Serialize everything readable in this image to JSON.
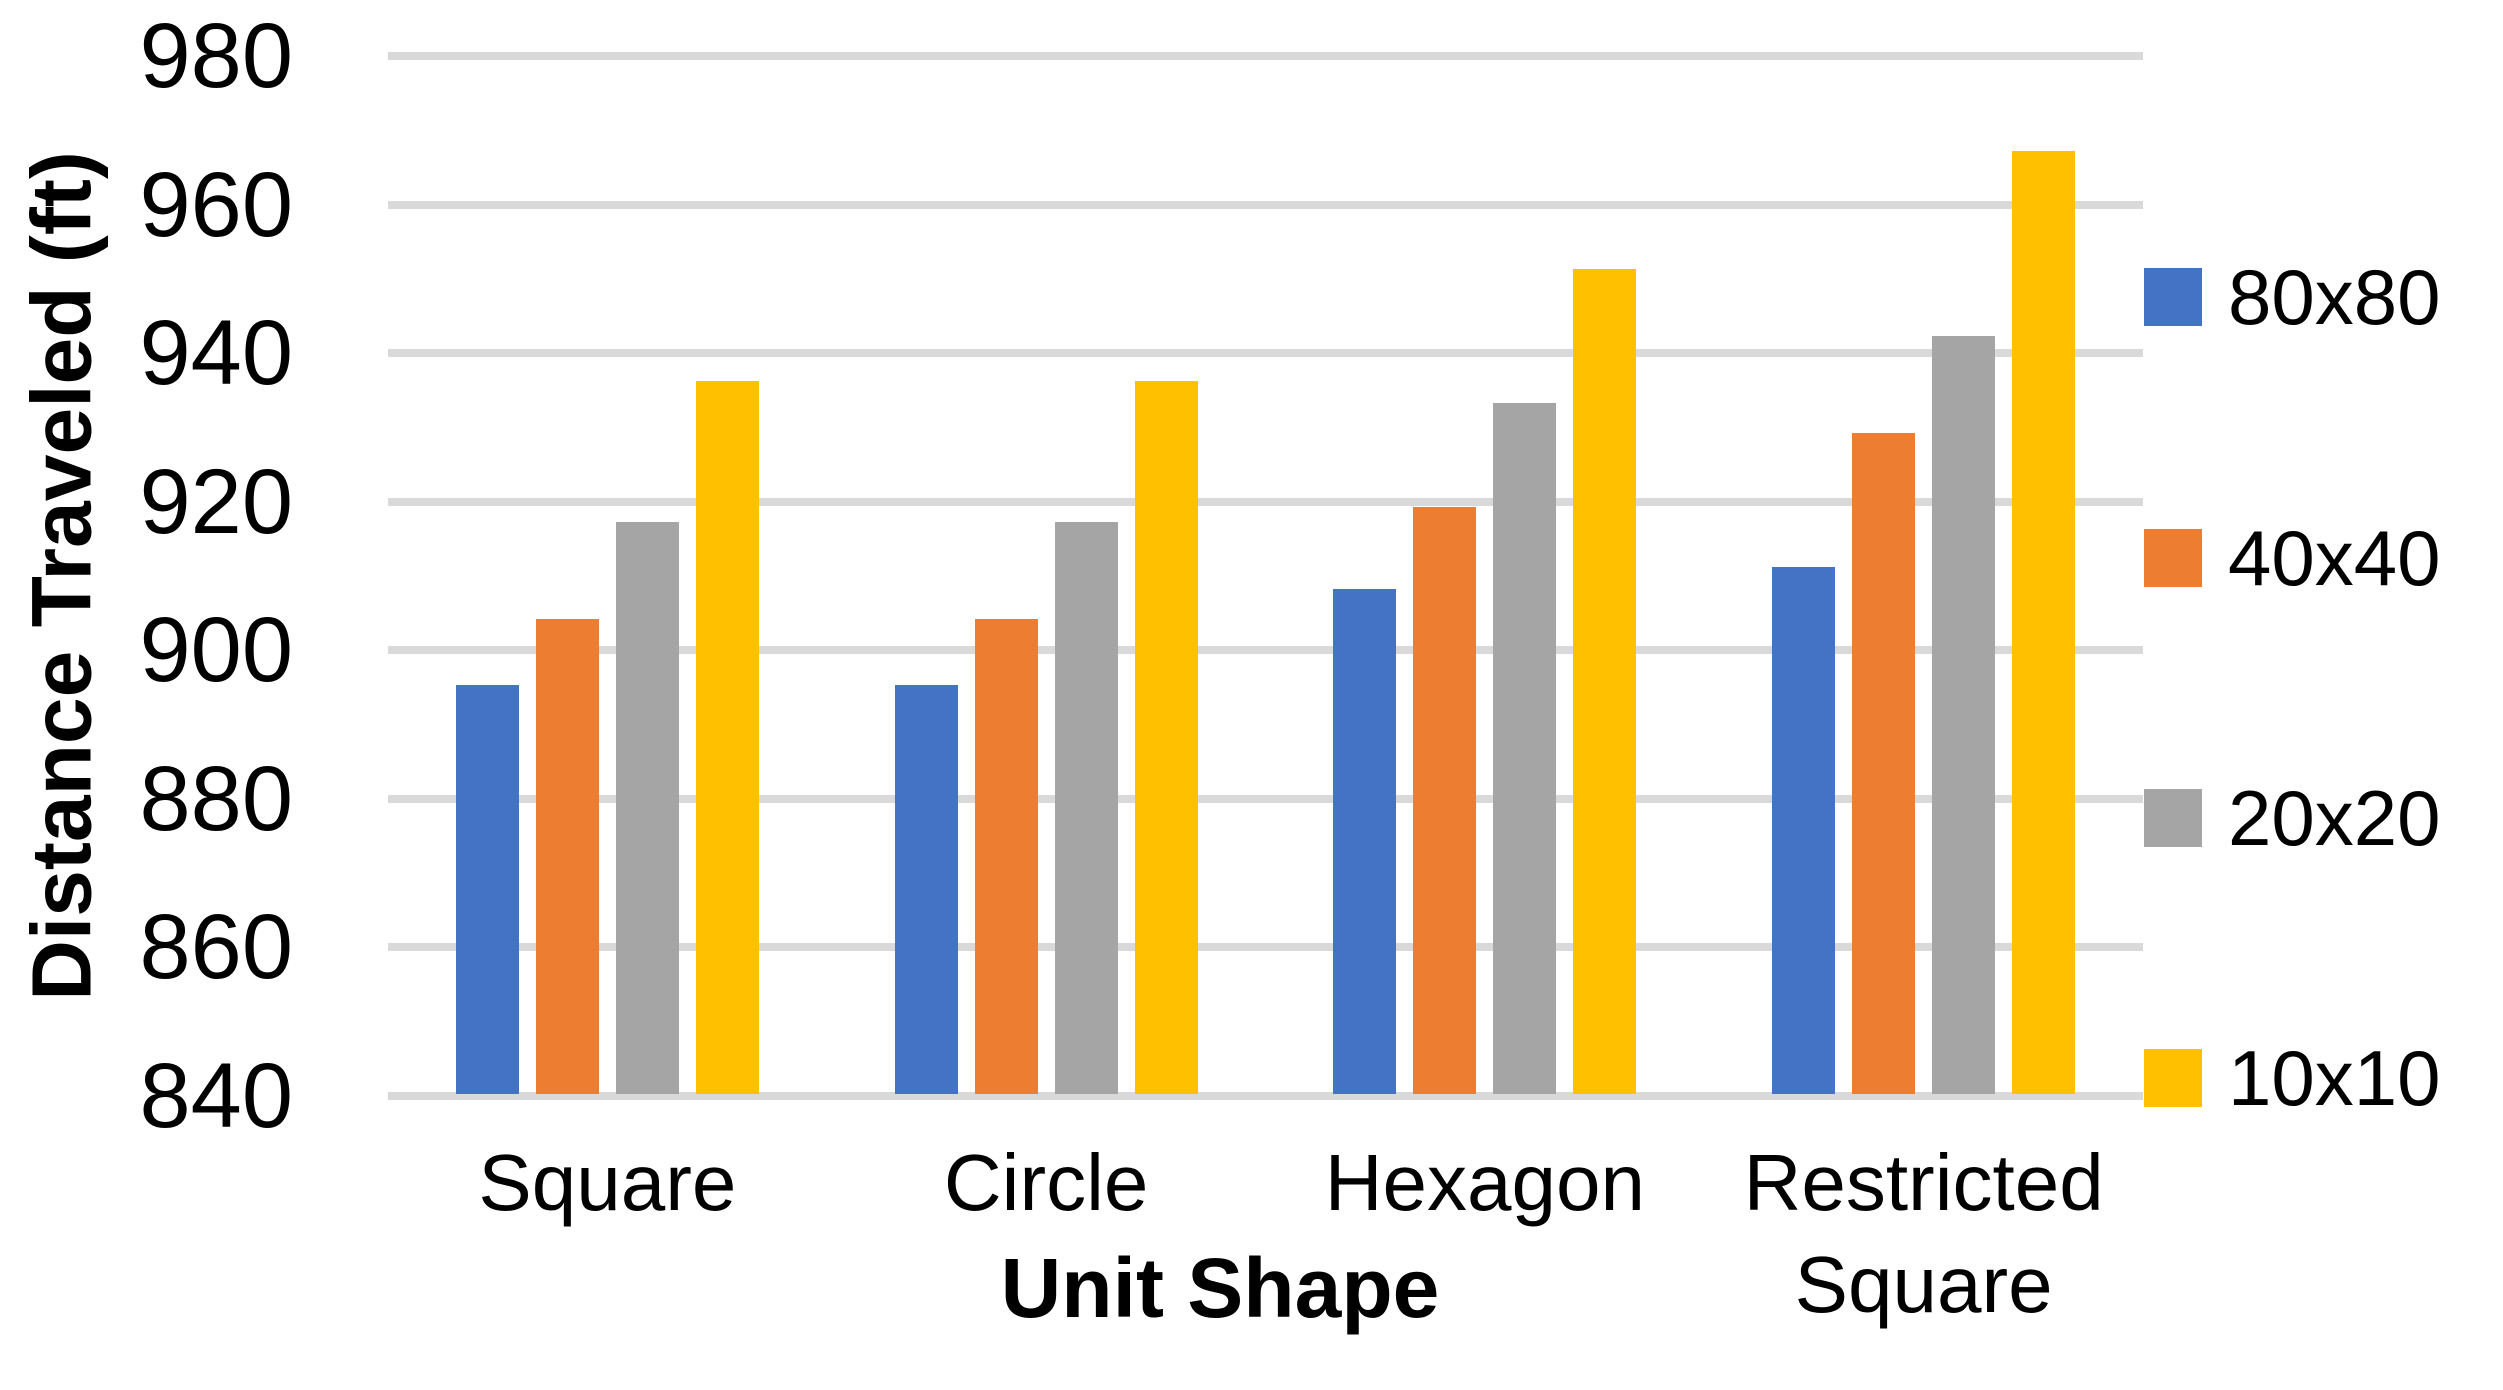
{
  "chart_data": {
    "type": "bar",
    "title": "",
    "categories": [
      "Square",
      "Circle",
      "Hexagon",
      "Restricted Square"
    ],
    "series": [
      {
        "name": "80x80",
        "color": "#4472C4",
        "values": [
          895,
          895,
          908,
          911
        ]
      },
      {
        "name": "40x40",
        "color": "#ED7D31",
        "values": [
          904,
          904,
          919,
          929
        ]
      },
      {
        "name": "20x20",
        "color": "#A5A5A5",
        "values": [
          917,
          917,
          933,
          942
        ]
      },
      {
        "name": "10x10",
        "color": "#FFC000",
        "values": [
          936,
          936,
          951,
          967
        ]
      }
    ],
    "xlabel": "Unit Shape",
    "ylabel": "Distance Traveled (ft)",
    "ylim": [
      840,
      980
    ],
    "ytick_step": 20,
    "yticks": [
      980,
      960,
      940,
      920,
      900,
      880,
      860,
      840
    ],
    "grid": true,
    "gridline_color": "#D9D9D9",
    "legend_position": "right",
    "background": "#FFFFFF",
    "text_color": "#000000"
  }
}
